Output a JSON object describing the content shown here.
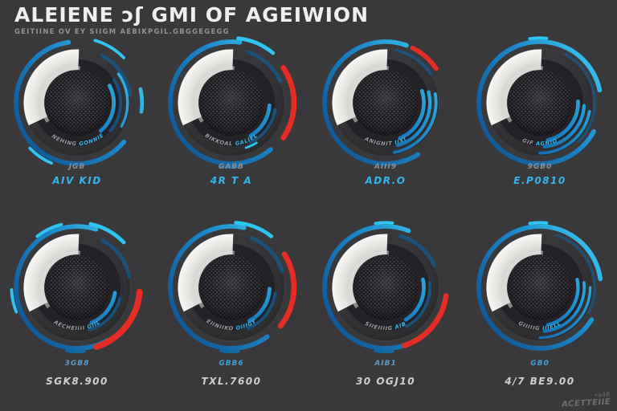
{
  "header": {
    "title": "ALEIENE ɔʃ GMI OF AGEIWION",
    "subtitle": "GEITIINE OV EY SIIGM AEBIKPGIL.GBGGEGEGG"
  },
  "watermark": {
    "line1": "«ʙAB",
    "line2": "ACETTEIIE"
  },
  "colors": {
    "background": "#39393b",
    "accent_blue": "#2fb6ec",
    "deep_blue": "#1c5078",
    "accent_red": "#e52d26",
    "wedge_white": "#f2f1ee",
    "label_gray": "#8f8f8f",
    "value_white": "#cfcfcd"
  },
  "chart_data": [
    {
      "type": "gauge",
      "position": "row1-col1",
      "label": "JGB",
      "label_color": "#8f8f8f",
      "value": "AIV KID",
      "value_color": "#35b5ea",
      "ring_text_a": "ANNEHING",
      "ring_text_b": "GONNIELL",
      "wedge": {
        "start_deg": 245,
        "end_deg": 362
      },
      "arcs": [
        {
          "r": 80,
          "w": 6,
          "a1": 130,
          "a2": 352,
          "c": "blue"
        },
        {
          "r": 85,
          "w": 4,
          "a1": 16,
          "a2": 46,
          "c": "cyan"
        },
        {
          "r": 70,
          "w": 5,
          "a1": 28,
          "a2": 82,
          "c": "deep"
        },
        {
          "r": 85,
          "w": 5,
          "a1": 78,
          "a2": 98,
          "c": "blue"
        },
        {
          "r": 48,
          "w": 5,
          "a1": 62,
          "a2": 140,
          "c": "blue"
        },
        {
          "r": 57,
          "w": 4,
          "a1": 58,
          "a2": 130,
          "c": "deep"
        },
        {
          "r": 66,
          "w": 3.5,
          "a1": 55,
          "a2": 118,
          "c": "blue"
        },
        {
          "r": 86,
          "w": 4,
          "a1": 203,
          "a2": 226,
          "c": "cyan"
        }
      ],
      "top_dash": false,
      "bottom_dash": false
    },
    {
      "type": "gauge",
      "position": "row1-col2",
      "label": "GABB",
      "label_color": "#8f8f8f",
      "value": "4R T A",
      "value_color": "#35b5ea",
      "ring_text_a": "BIKKOAL",
      "ring_text_b": "GALIEL",
      "wedge": {
        "start_deg": 245,
        "end_deg": 362
      },
      "arcs": [
        {
          "r": 80,
          "w": 6,
          "a1": 140,
          "a2": 368,
          "c": "blue"
        },
        {
          "r": 85,
          "w": 5,
          "a1": 6,
          "a2": 40,
          "c": "cyan"
        },
        {
          "r": 70,
          "w": 5,
          "a1": 18,
          "a2": 66,
          "c": "deep"
        },
        {
          "r": 82,
          "w": 7,
          "a1": 56,
          "a2": 124,
          "c": "red"
        },
        {
          "r": 50,
          "w": 5,
          "a1": 94,
          "a2": 150,
          "c": "blue"
        },
        {
          "r": 58,
          "w": 4,
          "a1": 99,
          "a2": 154,
          "c": "deep"
        },
        {
          "r": 62,
          "w": 3,
          "a1": 148,
          "a2": 162,
          "c": "cyan"
        }
      ],
      "top_dash": false,
      "bottom_dash": true
    },
    {
      "type": "gauge",
      "position": "row1-col3",
      "label": "AIII9",
      "label_color": "#8f8f8f",
      "value": "ADR.O",
      "value_color": "#35b5ea",
      "ring_text_a": "ANIGNIT",
      "ring_text_b": "IIXI",
      "wedge": {
        "start_deg": 245,
        "end_deg": 362
      },
      "arcs": [
        {
          "r": 80,
          "w": 6,
          "a1": 148,
          "a2": 380,
          "c": "blue"
        },
        {
          "r": 80,
          "w": 6,
          "a1": 26,
          "a2": 56,
          "c": "red"
        },
        {
          "r": 70,
          "w": 4,
          "a1": 12,
          "a2": 58,
          "c": "deep"
        },
        {
          "r": 50,
          "w": 5,
          "a1": 72,
          "a2": 158,
          "c": "blue"
        },
        {
          "r": 58,
          "w": 4.5,
          "a1": 76,
          "a2": 164,
          "c": "blue"
        },
        {
          "r": 66,
          "w": 4,
          "a1": 80,
          "a2": 170,
          "c": "blue"
        }
      ],
      "top_dash": false,
      "bottom_dash": false
    },
    {
      "type": "gauge",
      "position": "row1-col4",
      "label": "9GB0",
      "label_color": "#8f8f8f",
      "value": "E.P0810",
      "value_color": "#35b5ea",
      "ring_text_a": "GIF",
      "ring_text_b": "AGNIO",
      "wedge": {
        "start_deg": 245,
        "end_deg": 362
      },
      "arcs": [
        {
          "r": 80,
          "w": 6,
          "a1": 118,
          "a2": 438,
          "c": "blue"
        },
        {
          "r": 72,
          "w": 3,
          "a1": 28,
          "a2": 135,
          "c": "deep"
        },
        {
          "r": 50,
          "w": 5,
          "a1": 88,
          "a2": 168,
          "c": "blue"
        },
        {
          "r": 58,
          "w": 4.5,
          "a1": 94,
          "a2": 174,
          "c": "blue"
        },
        {
          "r": 66,
          "w": 4,
          "a1": 100,
          "a2": 180,
          "c": "blue"
        }
      ],
      "top_dash": true,
      "bottom_dash": false
    },
    {
      "type": "gauge",
      "position": "row2-col1",
      "label": "3GB8",
      "label_color": "#5e9cc4",
      "value": "SGK8.900",
      "value_color": "#cfcfcd",
      "ring_text_a": "AECHEIIII",
      "ring_text_b": "GIIL",
      "wedge": {
        "start_deg": 243,
        "end_deg": 362
      },
      "arcs": [
        {
          "r": 80,
          "w": 6,
          "a1": 150,
          "a2": 378,
          "c": "blue"
        },
        {
          "r": 85,
          "w": 5,
          "a1": 12,
          "a2": 46,
          "c": "cyan"
        },
        {
          "r": 85,
          "w": 4,
          "a1": 322,
          "a2": 346,
          "c": "cyan"
        },
        {
          "r": 82,
          "w": 8,
          "a1": 94,
          "a2": 162,
          "c": "red"
        },
        {
          "r": 70,
          "w": 5,
          "a1": 28,
          "a2": 78,
          "c": "deep"
        },
        {
          "r": 50,
          "w": 5,
          "a1": 98,
          "a2": 158,
          "c": "blue"
        },
        {
          "r": 58,
          "w": 4,
          "a1": 104,
          "a2": 164,
          "c": "deep"
        },
        {
          "r": 86,
          "w": 4,
          "a1": 248,
          "a2": 268,
          "c": "cyan"
        }
      ],
      "top_dash": false,
      "bottom_dash": true
    },
    {
      "type": "gauge",
      "position": "row2-col2",
      "label": "GBB6",
      "label_color": "#3f9fd8",
      "value": "TXL.7600",
      "value_color": "#cfcfcd",
      "ring_text_a": "EIINIIKO",
      "ring_text_b": "OIIIGY",
      "wedge": {
        "start_deg": 243,
        "end_deg": 362
      },
      "arcs": [
        {
          "r": 80,
          "w": 6,
          "a1": 144,
          "a2": 372,
          "c": "blue"
        },
        {
          "r": 85,
          "w": 5,
          "a1": 4,
          "a2": 38,
          "c": "cyan"
        },
        {
          "r": 82,
          "w": 7,
          "a1": 58,
          "a2": 128,
          "c": "red"
        },
        {
          "r": 70,
          "w": 5,
          "a1": 22,
          "a2": 72,
          "c": "deep"
        },
        {
          "r": 50,
          "w": 5,
          "a1": 92,
          "a2": 152,
          "c": "blue"
        },
        {
          "r": 58,
          "w": 4,
          "a1": 98,
          "a2": 158,
          "c": "deep"
        }
      ],
      "top_dash": false,
      "bottom_dash": true
    },
    {
      "type": "gauge",
      "position": "row2-col3",
      "label": "AIB1",
      "label_color": "#5e9cc4",
      "value": "30 OGJ10",
      "value_color": "#cfcfcd",
      "ring_text_a": "SIIEIIIIG",
      "ring_text_b": "AIB",
      "wedge": {
        "start_deg": 243,
        "end_deg": 362
      },
      "arcs": [
        {
          "r": 80,
          "w": 6,
          "a1": 148,
          "a2": 382,
          "c": "blue"
        },
        {
          "r": 80,
          "w": 7,
          "a1": 98,
          "a2": 162,
          "c": "red"
        },
        {
          "r": 70,
          "w": 5,
          "a1": 16,
          "a2": 66,
          "c": "deep"
        },
        {
          "r": 50,
          "w": 5,
          "a1": 78,
          "a2": 148,
          "c": "blue"
        },
        {
          "r": 58,
          "w": 4,
          "a1": 84,
          "a2": 152,
          "c": "deep"
        }
      ],
      "top_dash": true,
      "bottom_dash": true
    },
    {
      "type": "gauge",
      "position": "row2-col4",
      "label": "GB0",
      "label_color": "#3f9fd8",
      "value": "4/7 BE9.00",
      "value_color": "#cfcfcd",
      "ring_text_a": "GIIIIIG",
      "ring_text_b": "IIIELL",
      "wedge": {
        "start_deg": 243,
        "end_deg": 362
      },
      "arcs": [
        {
          "r": 80,
          "w": 6,
          "a1": 122,
          "a2": 442,
          "c": "blue"
        },
        {
          "r": 72,
          "w": 3,
          "a1": 18,
          "a2": 118,
          "c": "deep"
        },
        {
          "r": 50,
          "w": 4.5,
          "a1": 78,
          "a2": 168,
          "c": "blue"
        },
        {
          "r": 58,
          "w": 4,
          "a1": 84,
          "a2": 174,
          "c": "blue"
        },
        {
          "r": 66,
          "w": 3.5,
          "a1": 90,
          "a2": 180,
          "c": "blue"
        }
      ],
      "top_dash": true,
      "bottom_dash": false
    }
  ]
}
